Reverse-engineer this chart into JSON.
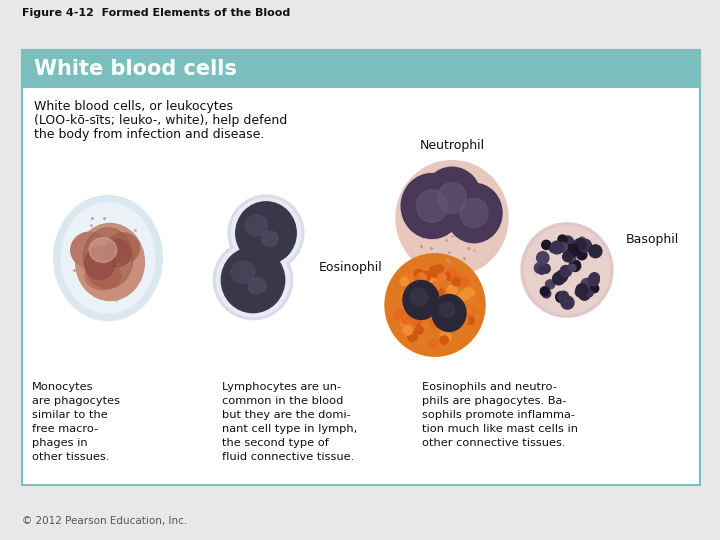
{
  "figure_title": "Figure 4-12  Formed Elements of the Blood",
  "section_title": "White blood cells",
  "header_bg_color": "#7bbfbf",
  "box_bg_color": "#ffffff",
  "box_border_color": "#7bbfbf",
  "intro_line1": "White blood cells, or leukocytes",
  "intro_line2": "(LOO-kō-sīts; leuko-, white), help defend",
  "intro_line3": "the body from infection and disease.",
  "neutrophil_label": "Neutrophil",
  "eosinophil_label": "Eosinophil",
  "basophil_label": "Basophil",
  "caption_left": "Monocytes\nare phagocytes\nsimilar to the\nfree macro-\nphages in\nother tissues.",
  "caption_mid": "Lymphocytes are un-\ncommon in the blood\nbut they are the domi-\nnant cell type in lymph,\nthe second type of\nfluid connective tissue.",
  "caption_right": "Eosinophils and neutro-\nphils are phagocytes. Ba-\nsophils promote inflamma-\ntion much like mast cells in\nother connective tissues.",
  "footer_text": "© 2012 Pearson Education, Inc.",
  "bg_color": "#ffffff",
  "outer_bg_color": "#e8e8e8"
}
